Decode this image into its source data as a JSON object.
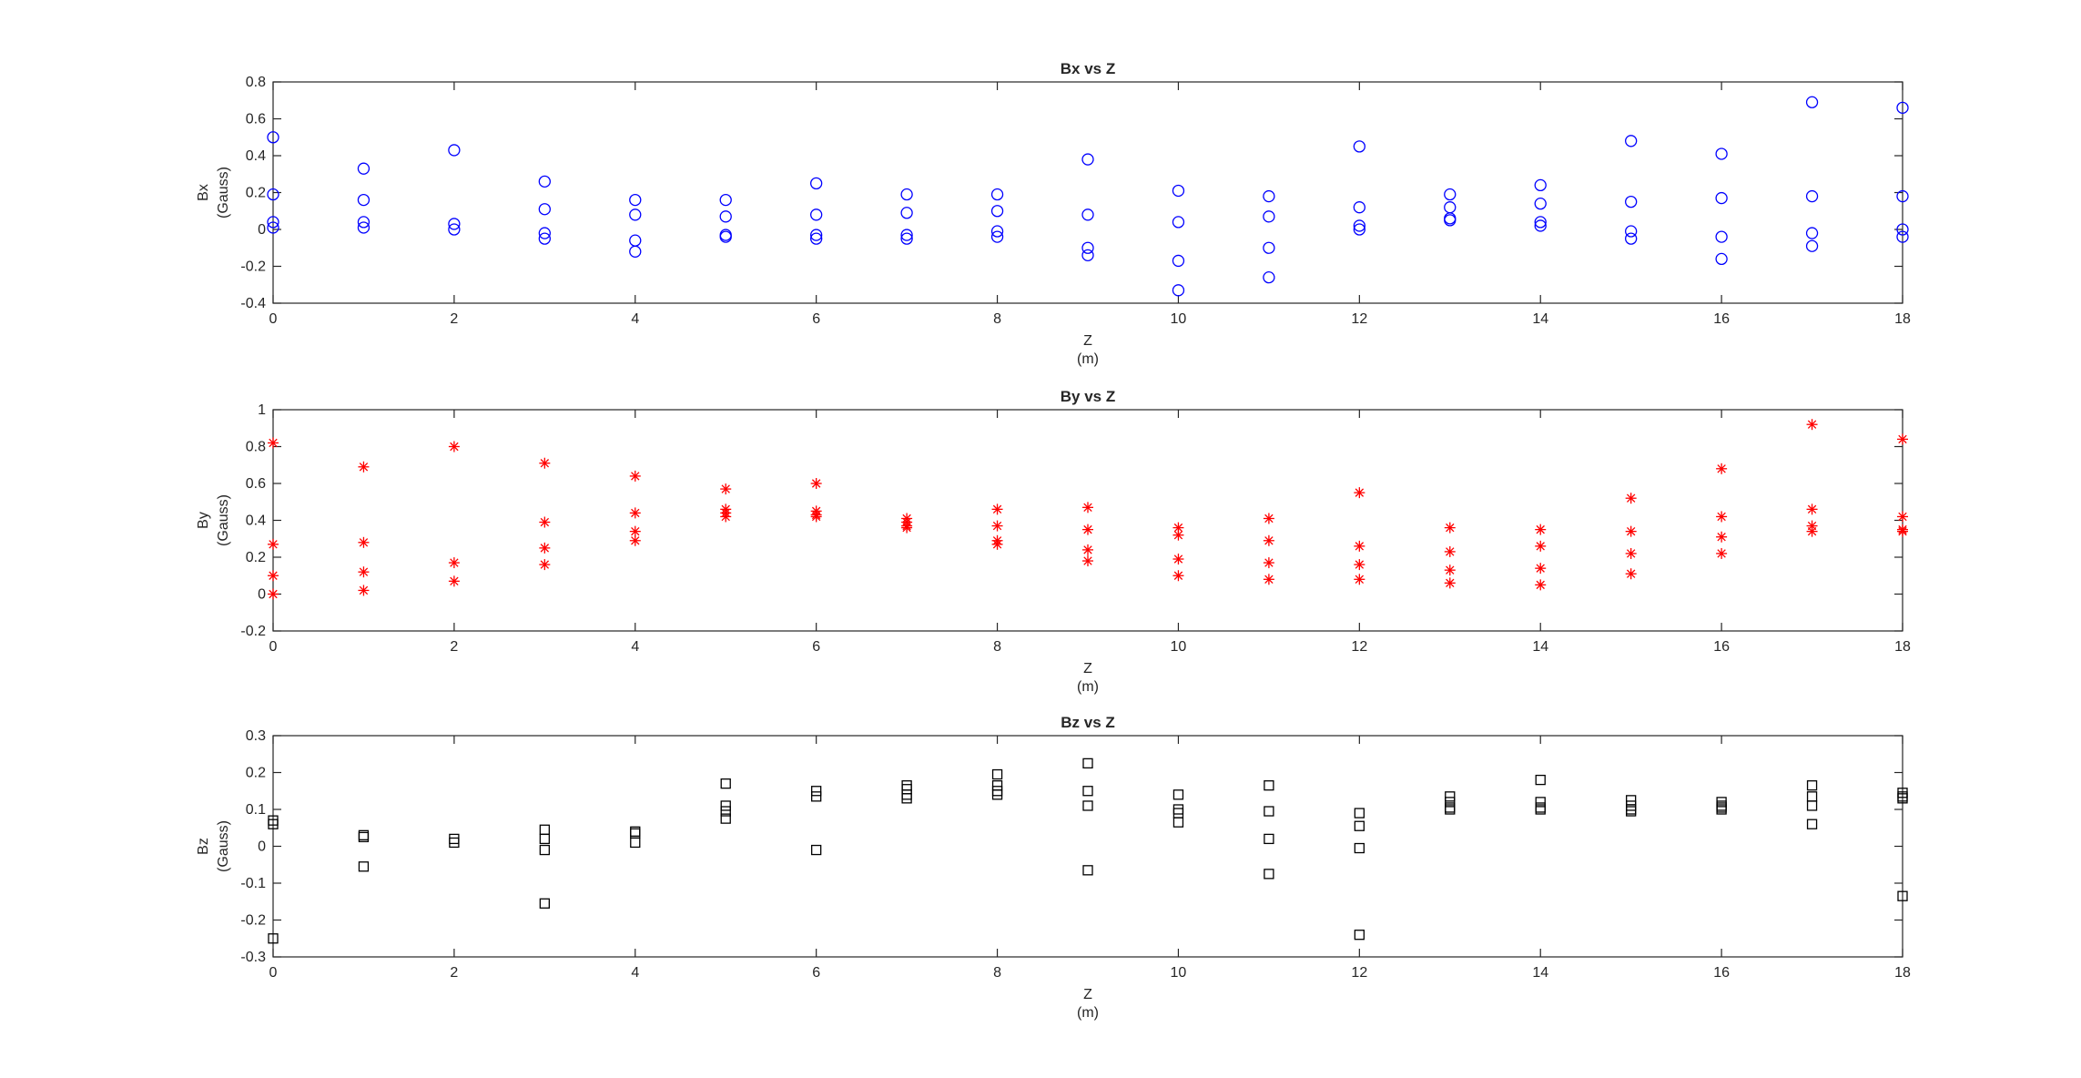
{
  "chart_data": [
    {
      "type": "scatter",
      "title": "Bx vs Z",
      "xlabel": [
        "Z",
        "(m)"
      ],
      "ylabel": [
        "Bx",
        "(Gauss)"
      ],
      "xlim": [
        0,
        18
      ],
      "ylim": [
        -0.4,
        0.8
      ],
      "xticks": [
        0,
        2,
        4,
        6,
        8,
        10,
        12,
        14,
        16,
        18
      ],
      "yticks": [
        -0.4,
        -0.2,
        0,
        0.2,
        0.4,
        0.6,
        0.8
      ],
      "grid": false,
      "marker": "circle",
      "color": "#0000ff",
      "points": [
        [
          0,
          0.5
        ],
        [
          0,
          0.19
        ],
        [
          0,
          0.04
        ],
        [
          0,
          0.01
        ],
        [
          1,
          0.33
        ],
        [
          1,
          0.16
        ],
        [
          1,
          0.04
        ],
        [
          1,
          0.01
        ],
        [
          2,
          0.43
        ],
        [
          2,
          0.03
        ],
        [
          2,
          0.0
        ],
        [
          3,
          0.26
        ],
        [
          3,
          0.11
        ],
        [
          3,
          -0.02
        ],
        [
          3,
          -0.05
        ],
        [
          4,
          0.16
        ],
        [
          4,
          0.08
        ],
        [
          4,
          -0.06
        ],
        [
          4,
          -0.12
        ],
        [
          5,
          0.16
        ],
        [
          5,
          0.07
        ],
        [
          5,
          -0.03
        ],
        [
          5,
          -0.04
        ],
        [
          6,
          0.25
        ],
        [
          6,
          0.08
        ],
        [
          6,
          -0.03
        ],
        [
          6,
          -0.05
        ],
        [
          7,
          0.19
        ],
        [
          7,
          0.09
        ],
        [
          7,
          -0.03
        ],
        [
          7,
          -0.05
        ],
        [
          8,
          0.19
        ],
        [
          8,
          0.1
        ],
        [
          8,
          -0.01
        ],
        [
          8,
          -0.04
        ],
        [
          9,
          0.38
        ],
        [
          9,
          0.08
        ],
        [
          9,
          -0.1
        ],
        [
          9,
          -0.14
        ],
        [
          10,
          0.21
        ],
        [
          10,
          0.04
        ],
        [
          10,
          -0.17
        ],
        [
          10,
          -0.33
        ],
        [
          11,
          0.18
        ],
        [
          11,
          0.07
        ],
        [
          11,
          -0.1
        ],
        [
          11,
          -0.26
        ],
        [
          12,
          0.45
        ],
        [
          12,
          0.12
        ],
        [
          12,
          0.02
        ],
        [
          12,
          0.0
        ],
        [
          13,
          0.19
        ],
        [
          13,
          0.12
        ],
        [
          13,
          0.06
        ],
        [
          13,
          0.05
        ],
        [
          14,
          0.24
        ],
        [
          14,
          0.14
        ],
        [
          14,
          0.04
        ],
        [
          14,
          0.02
        ],
        [
          15,
          0.48
        ],
        [
          15,
          0.15
        ],
        [
          15,
          -0.01
        ],
        [
          15,
          -0.05
        ],
        [
          16,
          0.41
        ],
        [
          16,
          0.17
        ],
        [
          16,
          -0.04
        ],
        [
          16,
          -0.16
        ],
        [
          17,
          0.69
        ],
        [
          17,
          0.18
        ],
        [
          17,
          -0.02
        ],
        [
          17,
          -0.09
        ],
        [
          18,
          0.66
        ],
        [
          18,
          0.18
        ],
        [
          18,
          0.0
        ],
        [
          18,
          -0.04
        ]
      ]
    },
    {
      "type": "scatter",
      "title": "By vs Z",
      "xlabel": [
        "Z",
        "(m)"
      ],
      "ylabel": [
        "By",
        "(Gauss)"
      ],
      "xlim": [
        0,
        18
      ],
      "ylim": [
        -0.2,
        1
      ],
      "xticks": [
        0,
        2,
        4,
        6,
        8,
        10,
        12,
        14,
        16,
        18
      ],
      "yticks": [
        -0.2,
        0,
        0.2,
        0.4,
        0.6,
        0.8,
        1
      ],
      "grid": false,
      "marker": "asterisk",
      "color": "#ff0000",
      "points": [
        [
          0,
          0.82
        ],
        [
          0,
          0.27
        ],
        [
          0,
          0.1
        ],
        [
          0,
          0.0
        ],
        [
          1,
          0.69
        ],
        [
          1,
          0.28
        ],
        [
          1,
          0.12
        ],
        [
          1,
          0.02
        ],
        [
          2,
          0.8
        ],
        [
          2,
          0.17
        ],
        [
          2,
          0.07
        ],
        [
          3,
          0.71
        ],
        [
          3,
          0.39
        ],
        [
          3,
          0.25
        ],
        [
          3,
          0.16
        ],
        [
          4,
          0.64
        ],
        [
          4,
          0.44
        ],
        [
          4,
          0.34
        ],
        [
          4,
          0.29
        ],
        [
          5,
          0.57
        ],
        [
          5,
          0.46
        ],
        [
          5,
          0.44
        ],
        [
          5,
          0.42
        ],
        [
          6,
          0.6
        ],
        [
          6,
          0.45
        ],
        [
          6,
          0.43
        ],
        [
          6,
          0.42
        ],
        [
          7,
          0.41
        ],
        [
          7,
          0.39
        ],
        [
          7,
          0.37
        ],
        [
          7,
          0.36
        ],
        [
          8,
          0.46
        ],
        [
          8,
          0.37
        ],
        [
          8,
          0.29
        ],
        [
          8,
          0.27
        ],
        [
          9,
          0.47
        ],
        [
          9,
          0.35
        ],
        [
          9,
          0.24
        ],
        [
          9,
          0.18
        ],
        [
          10,
          0.36
        ],
        [
          10,
          0.32
        ],
        [
          10,
          0.19
        ],
        [
          10,
          0.1
        ],
        [
          11,
          0.41
        ],
        [
          11,
          0.29
        ],
        [
          11,
          0.17
        ],
        [
          11,
          0.08
        ],
        [
          12,
          0.55
        ],
        [
          12,
          0.26
        ],
        [
          12,
          0.16
        ],
        [
          12,
          0.08
        ],
        [
          13,
          0.36
        ],
        [
          13,
          0.23
        ],
        [
          13,
          0.13
        ],
        [
          13,
          0.06
        ],
        [
          14,
          0.35
        ],
        [
          14,
          0.26
        ],
        [
          14,
          0.14
        ],
        [
          14,
          0.05
        ],
        [
          15,
          0.52
        ],
        [
          15,
          0.34
        ],
        [
          15,
          0.22
        ],
        [
          15,
          0.11
        ],
        [
          16,
          0.68
        ],
        [
          16,
          0.42
        ],
        [
          16,
          0.31
        ],
        [
          16,
          0.22
        ],
        [
          17,
          0.92
        ],
        [
          17,
          0.46
        ],
        [
          17,
          0.37
        ],
        [
          17,
          0.34
        ],
        [
          18,
          0.84
        ],
        [
          18,
          0.42
        ],
        [
          18,
          0.35
        ],
        [
          18,
          0.34
        ]
      ]
    },
    {
      "type": "scatter",
      "title": "Bz vs Z",
      "xlabel": [
        "Z",
        "(m)"
      ],
      "ylabel": [
        "Bz",
        "(Gauss)"
      ],
      "xlim": [
        0,
        18
      ],
      "ylim": [
        -0.3,
        0.3
      ],
      "xticks": [
        0,
        2,
        4,
        6,
        8,
        10,
        12,
        14,
        16,
        18
      ],
      "yticks": [
        -0.3,
        -0.2,
        -0.1,
        0,
        0.1,
        0.2,
        0.3
      ],
      "grid": false,
      "marker": "square",
      "color": "#000000",
      "points": [
        [
          0,
          0.07
        ],
        [
          0,
          0.06
        ],
        [
          0,
          -0.25
        ],
        [
          1,
          0.03
        ],
        [
          1,
          0.025
        ],
        [
          1,
          -0.055
        ],
        [
          2,
          0.02
        ],
        [
          2,
          0.01
        ],
        [
          3,
          0.045
        ],
        [
          3,
          0.02
        ],
        [
          3,
          -0.01
        ],
        [
          3,
          -0.155
        ],
        [
          4,
          0.04
        ],
        [
          4,
          0.035
        ],
        [
          4,
          0.01
        ],
        [
          5,
          0.17
        ],
        [
          5,
          0.11
        ],
        [
          5,
          0.095
        ],
        [
          5,
          0.075
        ],
        [
          6,
          0.15
        ],
        [
          6,
          0.135
        ],
        [
          6,
          -0.01
        ],
        [
          7,
          0.165
        ],
        [
          7,
          0.155
        ],
        [
          7,
          0.14
        ],
        [
          7,
          0.13
        ],
        [
          8,
          0.195
        ],
        [
          8,
          0.165
        ],
        [
          8,
          0.15
        ],
        [
          8,
          0.14
        ],
        [
          9,
          0.225
        ],
        [
          9,
          0.15
        ],
        [
          9,
          0.11
        ],
        [
          9,
          -0.065
        ],
        [
          10,
          0.14
        ],
        [
          10,
          0.1
        ],
        [
          10,
          0.09
        ],
        [
          10,
          0.065
        ],
        [
          11,
          0.165
        ],
        [
          11,
          0.095
        ],
        [
          11,
          0.02
        ],
        [
          11,
          -0.075
        ],
        [
          12,
          0.09
        ],
        [
          12,
          0.055
        ],
        [
          12,
          -0.005
        ],
        [
          12,
          -0.24
        ],
        [
          13,
          0.135
        ],
        [
          13,
          0.12
        ],
        [
          13,
          0.105
        ],
        [
          13,
          0.1
        ],
        [
          14,
          0.18
        ],
        [
          14,
          0.12
        ],
        [
          14,
          0.105
        ],
        [
          14,
          0.1
        ],
        [
          15,
          0.125
        ],
        [
          15,
          0.11
        ],
        [
          15,
          0.1
        ],
        [
          15,
          0.095
        ],
        [
          16,
          0.12
        ],
        [
          16,
          0.11
        ],
        [
          16,
          0.105
        ],
        [
          16,
          0.1
        ],
        [
          17,
          0.165
        ],
        [
          17,
          0.135
        ],
        [
          17,
          0.11
        ],
        [
          17,
          0.06
        ],
        [
          18,
          0.145
        ],
        [
          18,
          0.135
        ],
        [
          18,
          0.13
        ],
        [
          18,
          -0.135
        ]
      ]
    }
  ]
}
